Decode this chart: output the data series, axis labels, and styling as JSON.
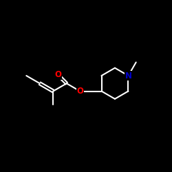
{
  "background_color": "#000000",
  "bond_color": "#ffffff",
  "oxygen_color": "#ff0000",
  "nitrogen_color": "#0000cd",
  "line_width": 1.5,
  "figsize": [
    2.5,
    2.5
  ],
  "dpi": 100,
  "xlim": [
    0,
    10
  ],
  "ylim": [
    0,
    10
  ],
  "label_fontsize": 8.5
}
